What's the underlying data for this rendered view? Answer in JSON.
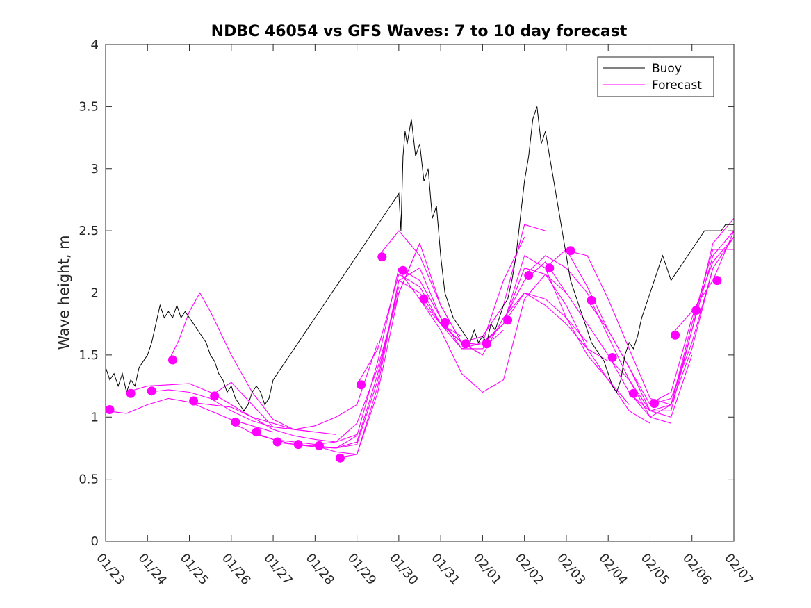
{
  "chart_data": {
    "type": "line",
    "title": "NDBC 46054 vs GFS Waves: 7 to 10 day forecast",
    "xlabel": "",
    "ylabel": "Wave height, m",
    "xlim": [
      0,
      15
    ],
    "ylim": [
      0,
      4
    ],
    "x_ticks": [
      0,
      1,
      2,
      3,
      4,
      5,
      6,
      7,
      8,
      9,
      10,
      11,
      12,
      13,
      14,
      15
    ],
    "x_tick_labels": [
      "01/23",
      "01/24",
      "01/25",
      "01/26",
      "01/27",
      "01/28",
      "01/29",
      "01/30",
      "01/31",
      "02/01",
      "02/02",
      "02/03",
      "02/04",
      "02/05",
      "02/06",
      "02/07"
    ],
    "y_ticks": [
      0,
      0.5,
      1,
      1.5,
      2,
      2.5,
      3,
      3.5,
      4
    ],
    "y_tick_labels": [
      "0",
      "0.5",
      "1",
      "1.5",
      "2",
      "2.5",
      "3",
      "3.5",
      "4"
    ],
    "legend_position": "top-right",
    "colors": {
      "buoy": "#000000",
      "forecast": "#ff00ff"
    },
    "series": [
      {
        "name": "Buoy",
        "kind": "line",
        "x": [
          0,
          0.1,
          0.2,
          0.3,
          0.4,
          0.5,
          0.6,
          0.7,
          0.8,
          0.9,
          1.0,
          1.1,
          1.2,
          1.3,
          1.4,
          1.5,
          1.6,
          1.7,
          1.8,
          1.9,
          2.0,
          2.1,
          2.2,
          2.3,
          2.4,
          2.5,
          2.6,
          2.7,
          2.8,
          2.9,
          3.0,
          3.1,
          3.2,
          3.3,
          3.4,
          3.5,
          3.6,
          3.7,
          3.8,
          3.9,
          4.0,
          7.0,
          7.05,
          7.1,
          7.15,
          7.2,
          7.3,
          7.4,
          7.5,
          7.6,
          7.7,
          7.8,
          7.9,
          8.0,
          8.1,
          8.2,
          8.3,
          8.4,
          8.5,
          8.6,
          8.7,
          8.8,
          8.9,
          9.0,
          9.1,
          9.2,
          9.3,
          9.4,
          9.5,
          9.6,
          9.7,
          9.8,
          9.9,
          10.0,
          10.1,
          10.2,
          10.3,
          10.4,
          10.5,
          10.6,
          10.7,
          10.8,
          10.9,
          11.0,
          11.1,
          11.2,
          11.3,
          11.4,
          11.5,
          11.6,
          11.7,
          11.8,
          11.9,
          12.0,
          12.1,
          12.2,
          12.3,
          12.4,
          12.5,
          12.6,
          12.7,
          12.8,
          12.9,
          13.0,
          13.1,
          13.2,
          13.3,
          13.4,
          13.5,
          13.6,
          13.7,
          13.8,
          13.9,
          14.0,
          14.1,
          14.2,
          14.3,
          14.4,
          14.5,
          14.6,
          14.7,
          14.8,
          14.9,
          15.0
        ],
        "values": [
          1.4,
          1.3,
          1.35,
          1.25,
          1.35,
          1.2,
          1.3,
          1.25,
          1.4,
          1.45,
          1.5,
          1.6,
          1.75,
          1.9,
          1.8,
          1.85,
          1.8,
          1.9,
          1.8,
          1.85,
          1.8,
          1.75,
          1.7,
          1.65,
          1.6,
          1.5,
          1.45,
          1.35,
          1.3,
          1.2,
          1.25,
          1.15,
          1.1,
          1.05,
          1.1,
          1.2,
          1.25,
          1.2,
          1.1,
          1.15,
          1.3,
          2.8,
          2.5,
          3.1,
          3.3,
          3.2,
          3.4,
          3.1,
          3.2,
          2.9,
          3.0,
          2.6,
          2.7,
          2.3,
          2.0,
          1.9,
          1.8,
          1.75,
          1.7,
          1.65,
          1.6,
          1.7,
          1.6,
          1.65,
          1.6,
          1.75,
          1.7,
          1.8,
          1.9,
          1.95,
          2.1,
          2.3,
          2.6,
          2.9,
          3.1,
          3.4,
          3.5,
          3.2,
          3.3,
          3.1,
          2.9,
          2.7,
          2.5,
          2.3,
          2.1,
          2.0,
          1.9,
          1.8,
          1.7,
          1.6,
          1.55,
          1.5,
          1.45,
          1.35,
          1.25,
          1.2,
          1.3,
          1.5,
          1.6,
          1.55,
          1.65,
          1.8,
          1.9,
          2.0,
          2.1,
          2.2,
          2.3,
          2.2,
          2.1,
          2.15,
          2.2,
          2.25,
          2.3,
          2.35,
          2.4,
          2.45,
          2.5,
          2.5,
          2.5,
          2.5,
          2.5,
          2.55,
          2.55,
          2.55
        ]
      },
      {
        "name": "Forecast",
        "kind": "lines",
        "runs": [
          {
            "x": [
              0,
              0.5,
              1.0,
              1.5,
              2.0,
              2.5,
              3.0,
              3.5,
              4.0
            ],
            "values": [
              1.05,
              1.03,
              1.1,
              1.15,
              1.12,
              1.05,
              0.98,
              0.93,
              0.88
            ]
          },
          {
            "x": [
              0.5,
              1.0,
              1.5,
              2.0,
              2.5,
              3.0,
              3.5,
              4.0,
              4.5
            ],
            "values": [
              1.2,
              1.25,
              1.26,
              1.27,
              1.2,
              1.1,
              1.0,
              0.95,
              0.9
            ]
          },
          {
            "x": [
              1.0,
              1.5,
              2.0,
              2.5,
              3.0,
              3.5,
              4.0,
              4.5,
              5.0
            ],
            "values": [
              1.2,
              1.22,
              1.2,
              1.15,
              1.05,
              0.97,
              0.92,
              0.9,
              0.88
            ]
          },
          {
            "x": [
              1.5,
              1.75,
              2.0,
              2.25,
              2.5,
              3.0,
              3.5,
              4.0,
              4.5,
              5.0,
              5.5
            ],
            "values": [
              1.45,
              1.62,
              1.85,
              2.0,
              1.85,
              1.5,
              1.2,
              0.98,
              0.9,
              0.88,
              0.86
            ]
          },
          {
            "x": [
              2.0,
              2.5,
              3.0,
              3.5,
              4.0,
              4.5,
              5.0,
              5.5,
              6.0
            ],
            "values": [
              1.12,
              1.1,
              1.08,
              1.0,
              0.9,
              0.85,
              0.82,
              0.8,
              0.86
            ]
          },
          {
            "x": [
              2.5,
              3.0,
              3.5,
              4.0,
              4.5,
              5.0,
              5.5,
              6.0,
              6.5
            ],
            "values": [
              1.17,
              1.28,
              1.1,
              0.92,
              0.9,
              0.93,
              1.0,
              1.1,
              1.6
            ]
          },
          {
            "x": [
              3.0,
              3.5,
              4.0,
              4.5,
              5.0,
              5.5,
              6.0,
              6.5,
              7.0
            ],
            "values": [
              0.96,
              0.87,
              0.82,
              0.78,
              0.76,
              0.75,
              0.8,
              1.35,
              2.05
            ]
          },
          {
            "x": [
              3.5,
              4.0,
              4.5,
              5.0,
              5.5,
              6.0,
              6.5,
              7.0,
              7.5
            ],
            "values": [
              0.88,
              0.82,
              0.8,
              0.78,
              0.8,
              0.95,
              1.4,
              2.0,
              2.4
            ]
          },
          {
            "x": [
              4.0,
              4.5,
              5.0,
              5.5,
              6.0,
              6.5,
              7.0,
              7.5,
              8.0
            ],
            "values": [
              0.8,
              0.78,
              0.77,
              0.75,
              0.85,
              1.45,
              2.2,
              2.1,
              1.8
            ]
          },
          {
            "x": [
              4.5,
              5.0,
              5.5,
              6.0,
              6.5,
              7.0,
              7.5,
              8.0,
              8.5
            ],
            "values": [
              0.78,
              0.76,
              0.75,
              0.78,
              1.3,
              2.1,
              2.0,
              1.75,
              1.65
            ]
          },
          {
            "x": [
              5.0,
              5.5,
              6.0,
              6.5,
              7.0,
              7.5,
              8.0,
              8.5,
              9.0
            ],
            "values": [
              0.77,
              0.72,
              0.7,
              1.2,
              2.0,
              2.4,
              1.9,
              1.6,
              1.5
            ]
          },
          {
            "x": [
              5.5,
              6.0,
              6.5,
              7.0,
              7.5,
              8.0,
              8.5,
              9.0,
              9.5
            ],
            "values": [
              0.67,
              0.7,
              1.25,
              2.1,
              2.2,
              1.8,
              1.55,
              1.55,
              1.7
            ]
          },
          {
            "x": [
              6.0,
              6.5,
              7.0,
              7.5,
              8.0,
              8.5,
              9.0,
              9.5,
              10.0
            ],
            "values": [
              1.26,
              1.55,
              2.15,
              2.05,
              1.75,
              1.55,
              1.6,
              2.1,
              2.45
            ]
          },
          {
            "x": [
              6.5,
              7.0,
              7.5,
              8.0,
              8.5,
              9.0,
              9.5,
              10.0,
              10.5
            ],
            "values": [
              2.29,
              2.5,
              2.3,
              1.9,
              1.6,
              1.65,
              1.9,
              2.55,
              2.5
            ]
          },
          {
            "x": [
              7.0,
              7.5,
              8.0,
              8.5,
              9.0,
              9.5,
              10.0,
              10.5,
              11.0
            ],
            "values": [
              2.18,
              1.95,
              1.7,
              1.35,
              1.2,
              1.3,
              1.95,
              2.15,
              2.0
            ]
          },
          {
            "x": [
              7.5,
              8.0,
              8.5,
              9.0,
              9.5,
              10.0,
              10.5,
              11.0,
              11.5
            ],
            "values": [
              1.95,
              1.75,
              1.6,
              1.5,
              1.8,
              2.0,
              1.95,
              1.8,
              1.6
            ]
          },
          {
            "x": [
              8.0,
              8.5,
              9.0,
              9.5,
              10.0,
              10.5,
              11.0,
              11.5,
              12.0
            ],
            "values": [
              1.76,
              1.6,
              1.58,
              1.75,
              2.0,
              1.9,
              1.75,
              1.55,
              1.45
            ]
          },
          {
            "x": [
              8.5,
              9.0,
              9.5,
              10.0,
              10.5,
              11.0,
              11.5,
              12.0,
              12.5
            ],
            "values": [
              1.59,
              1.6,
              1.75,
              2.3,
              2.2,
              1.8,
              1.5,
              1.3,
              1.1
            ]
          },
          {
            "x": [
              9.0,
              9.5,
              10.0,
              10.5,
              11.0,
              11.5,
              12.0,
              12.5,
              13.0
            ],
            "values": [
              1.59,
              1.75,
              2.2,
              2.15,
              1.9,
              1.55,
              1.3,
              1.05,
              0.95
            ]
          },
          {
            "x": [
              9.5,
              10.0,
              10.5,
              11.0,
              11.5,
              12.0,
              12.5,
              13.0,
              13.5
            ],
            "values": [
              1.78,
              2.1,
              2.25,
              2.0,
              1.75,
              1.5,
              1.2,
              1.0,
              0.95
            ]
          },
          {
            "x": [
              10.0,
              10.5,
              11.0,
              11.5,
              12.0,
              12.5,
              13.0,
              13.5,
              14.0
            ],
            "values": [
              2.14,
              2.3,
              2.2,
              2.0,
              1.65,
              1.3,
              1.05,
              1.0,
              1.5
            ]
          },
          {
            "x": [
              10.5,
              11.0,
              11.5,
              12.0,
              12.5,
              13.0,
              13.5,
              14.0,
              14.5
            ],
            "values": [
              2.2,
              2.35,
              2.05,
              1.7,
              1.4,
              1.1,
              1.15,
              1.6,
              2.2
            ]
          },
          {
            "x": [
              11.0,
              11.5,
              12.0,
              12.5,
              13.0,
              13.5,
              14.0,
              14.5,
              15.0
            ],
            "values": [
              2.34,
              2.3,
              1.95,
              1.55,
              1.15,
              1.1,
              1.55,
              2.2,
              2.45
            ]
          },
          {
            "x": [
              11.5,
              12.0,
              12.5,
              13.0,
              13.5,
              14.0,
              14.5,
              15.0
            ],
            "values": [
              1.94,
              1.7,
              1.4,
              1.05,
              1.05,
              1.7,
              2.4,
              2.6
            ]
          },
          {
            "x": [
              12.0,
              12.5,
              13.0,
              13.5,
              14.0,
              14.5,
              15.0
            ],
            "values": [
              1.48,
              1.3,
              1.0,
              1.1,
              1.7,
              2.3,
              2.5
            ]
          },
          {
            "x": [
              12.5,
              13.0,
              13.5,
              14.0,
              14.5,
              15.0
            ],
            "values": [
              1.19,
              1.05,
              1.1,
              1.75,
              2.35,
              2.35
            ]
          },
          {
            "x": [
              13.0,
              13.5,
              14.0,
              14.5,
              15.0
            ],
            "values": [
              1.11,
              1.2,
              1.8,
              2.25,
              2.45
            ]
          },
          {
            "x": [
              13.5,
              14.0,
              14.5,
              15.0
            ],
            "values": [
              1.66,
              1.85,
              2.1,
              2.5
            ]
          }
        ],
        "markers": {
          "x": [
            0.1,
            0.6,
            1.1,
            1.6,
            2.1,
            2.6,
            3.1,
            3.6,
            4.1,
            4.6,
            5.1,
            5.6,
            6.1,
            6.6,
            7.1,
            7.6,
            8.1,
            8.6,
            9.1,
            9.6,
            10.1,
            10.6,
            11.1,
            11.6,
            12.1,
            12.6,
            13.1,
            13.6,
            14.1,
            14.6
          ],
          "values": [
            1.06,
            1.19,
            1.21,
            1.46,
            1.13,
            1.17,
            0.96,
            0.88,
            0.8,
            0.78,
            0.77,
            0.67,
            1.26,
            2.29,
            2.18,
            1.95,
            1.76,
            1.59,
            1.59,
            1.78,
            2.14,
            2.2,
            2.34,
            1.94,
            1.48,
            1.19,
            1.11,
            1.66,
            1.86,
            2.1
          ]
        }
      }
    ]
  }
}
